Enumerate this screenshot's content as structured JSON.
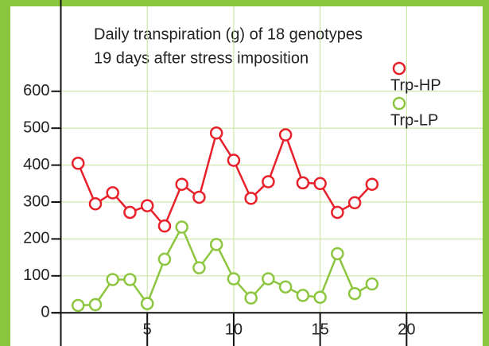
{
  "chart_data": {
    "type": "line",
    "title": "Daily transpiration (g) of 18 genotypes",
    "subtitle": "19 days after stress imposition",
    "x": [
      1,
      2,
      3,
      4,
      5,
      6,
      7,
      8,
      9,
      10,
      11,
      12,
      13,
      14,
      15,
      16,
      17,
      18
    ],
    "series": [
      {
        "name": "Trp-HP",
        "color": "#e8202a",
        "values": [
          405,
          295,
          325,
          272,
          290,
          235,
          348,
          313,
          487,
          413,
          310,
          355,
          482,
          352,
          350,
          272,
          298,
          348
        ]
      },
      {
        "name": "Trp-LP",
        "color": "#8cc63f",
        "values": [
          20,
          22,
          90,
          90,
          25,
          145,
          232,
          122,
          185,
          92,
          40,
          92,
          70,
          47,
          42,
          160,
          52,
          78
        ]
      }
    ],
    "xlim": [
      0,
      24.4
    ],
    "xticks": [
      5,
      10,
      15,
      20
    ],
    "ylim": [
      -90,
      830
    ],
    "yticks": [
      0,
      100,
      200,
      300,
      400,
      500,
      600
    ],
    "grid": true,
    "legend": "top-right"
  }
}
